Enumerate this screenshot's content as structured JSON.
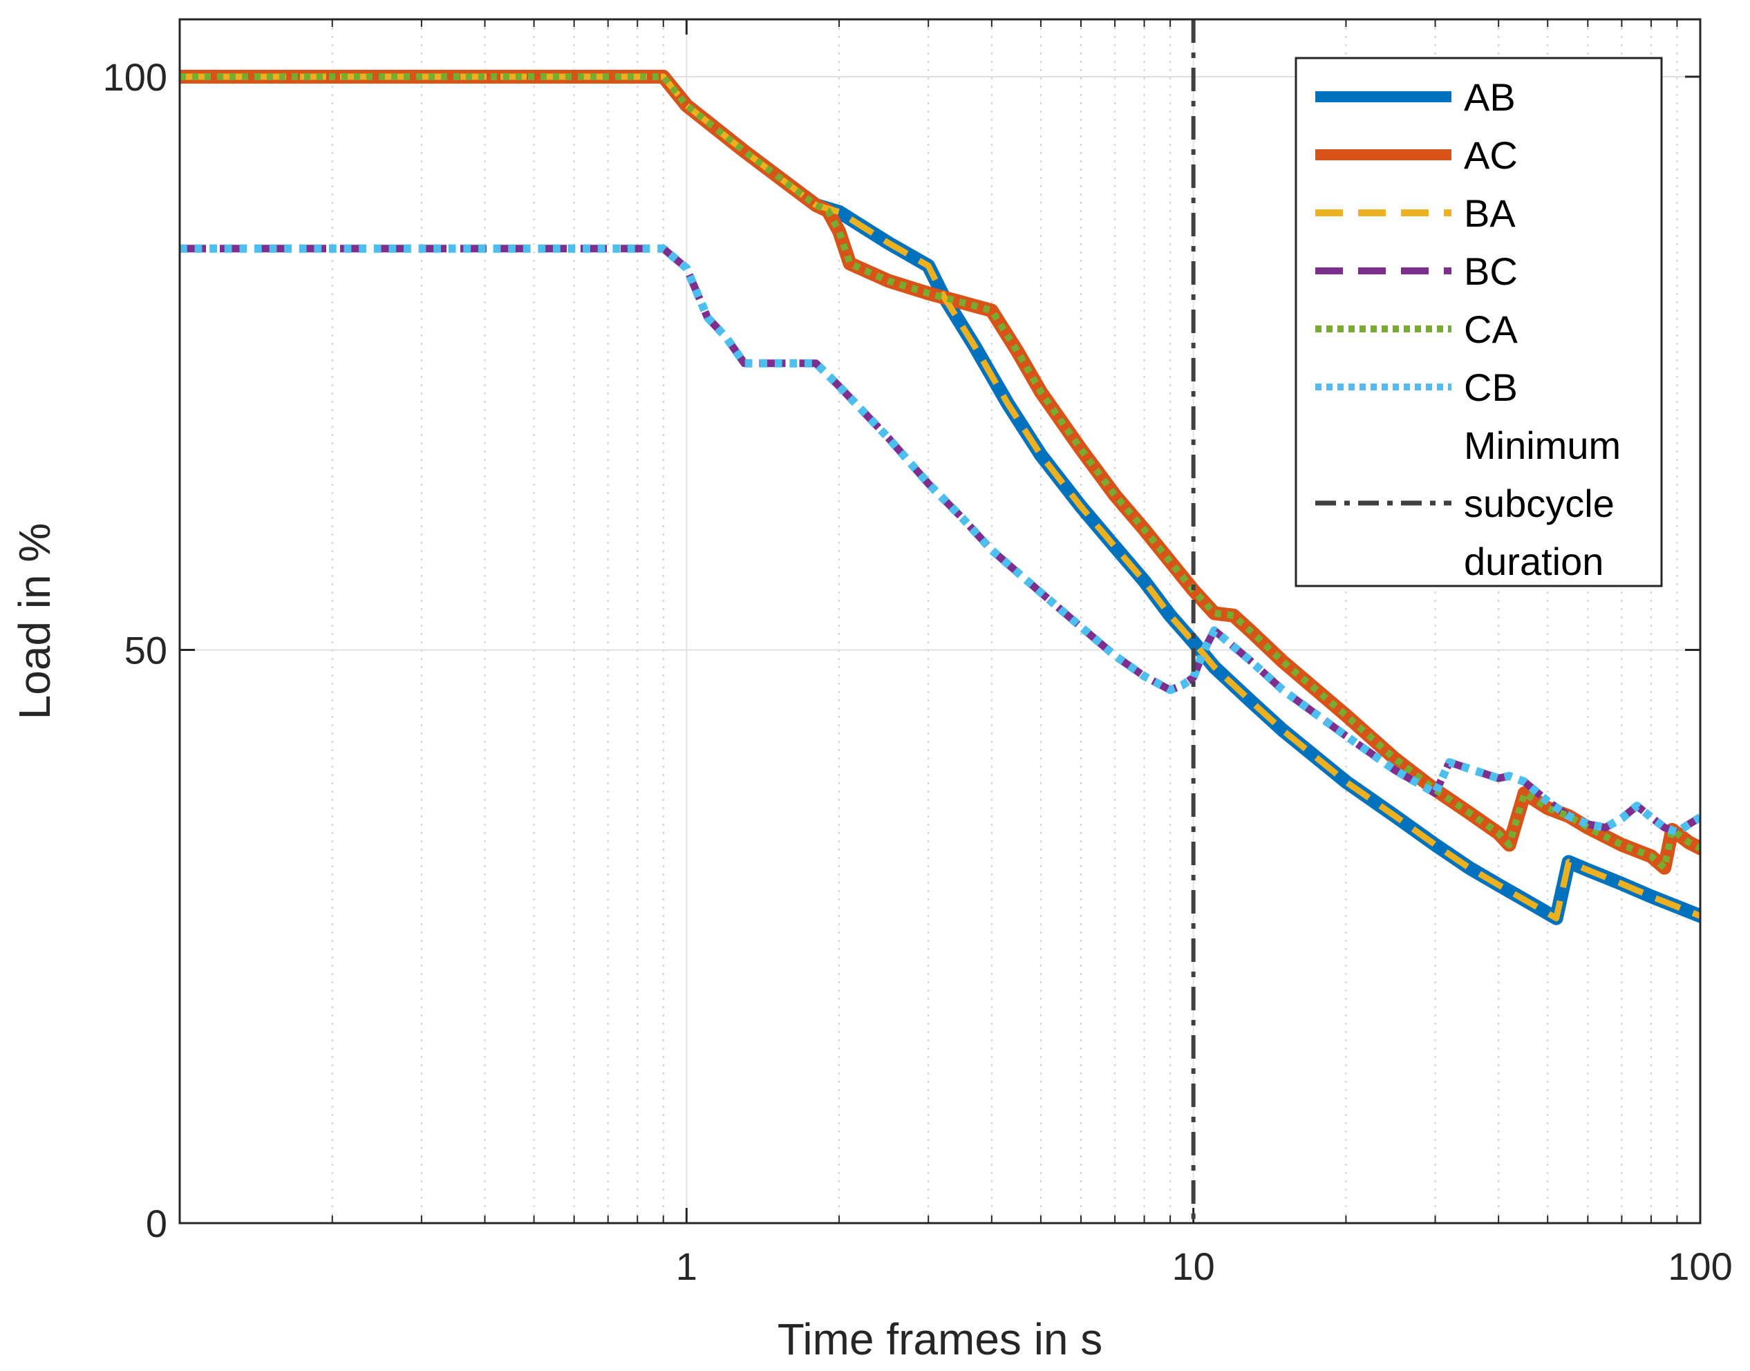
{
  "chart_data": {
    "type": "line",
    "xscale": "log",
    "xlabel": "Time frames in s",
    "ylabel": "Load in %",
    "xlim": [
      0.1,
      100
    ],
    "ylim": [
      0,
      105
    ],
    "xticks": [
      1,
      10,
      100
    ],
    "xtick_labels": [
      "1",
      "10",
      "100"
    ],
    "yticks": [
      0,
      50,
      100
    ],
    "ytick_labels": [
      "0",
      "50",
      "100"
    ],
    "grid": true,
    "legend_position": "top-right",
    "series": [
      {
        "name": "AB",
        "color": "#0072BD",
        "style": "solid",
        "width": 20,
        "points": [
          [
            0.1,
            100
          ],
          [
            0.9,
            100
          ],
          [
            1.0,
            97.5
          ],
          [
            1.3,
            93.5
          ],
          [
            1.6,
            90.5
          ],
          [
            1.8,
            88.8
          ],
          [
            2.0,
            88.2
          ],
          [
            2.5,
            85.5
          ],
          [
            3.0,
            83.5
          ],
          [
            3.2,
            81
          ],
          [
            3.7,
            76.5
          ],
          [
            4.3,
            71.5
          ],
          [
            5,
            67
          ],
          [
            6,
            62.5
          ],
          [
            7,
            59
          ],
          [
            8,
            56
          ],
          [
            9,
            53
          ],
          [
            10,
            50.7
          ],
          [
            11,
            48.5
          ],
          [
            13,
            45.5
          ],
          [
            15,
            43
          ],
          [
            20,
            38.5
          ],
          [
            25,
            35.5
          ],
          [
            30,
            33
          ],
          [
            35,
            31
          ],
          [
            40,
            29.5
          ],
          [
            45,
            28.2
          ],
          [
            52,
            26.6
          ],
          [
            55,
            31.5
          ],
          [
            60,
            30.8
          ],
          [
            70,
            29.6
          ],
          [
            80,
            28.5
          ],
          [
            90,
            27.6
          ],
          [
            100,
            26.8
          ]
        ]
      },
      {
        "name": "AC",
        "color": "#D95319",
        "style": "solid",
        "width": 20,
        "points": [
          [
            0.1,
            100
          ],
          [
            0.9,
            100
          ],
          [
            1.0,
            97.5
          ],
          [
            1.3,
            93.5
          ],
          [
            1.6,
            90.5
          ],
          [
            1.8,
            88.8
          ],
          [
            1.9,
            88.3
          ],
          [
            2.0,
            86.5
          ],
          [
            2.1,
            83.7
          ],
          [
            2.5,
            82.2
          ],
          [
            3.0,
            81.1
          ],
          [
            3.5,
            80.3
          ],
          [
            4.0,
            79.6
          ],
          [
            4.5,
            76
          ],
          [
            5,
            72.5
          ],
          [
            6,
            67.5
          ],
          [
            7,
            63.5
          ],
          [
            8,
            60.5
          ],
          [
            9,
            57.7
          ],
          [
            10,
            55.2
          ],
          [
            11,
            53.2
          ],
          [
            12,
            53
          ],
          [
            13,
            51.6
          ],
          [
            15,
            49
          ],
          [
            20,
            44.3
          ],
          [
            25,
            40.5
          ],
          [
            30,
            37.8
          ],
          [
            35,
            35.8
          ],
          [
            40,
            34
          ],
          [
            42,
            33
          ],
          [
            45,
            37.5
          ],
          [
            50,
            36.2
          ],
          [
            55,
            35.5
          ],
          [
            60,
            34.5
          ],
          [
            70,
            33
          ],
          [
            80,
            32
          ],
          [
            85,
            31
          ],
          [
            88,
            34.3
          ],
          [
            90,
            34
          ],
          [
            95,
            33.2
          ],
          [
            100,
            32.7
          ]
        ]
      },
      {
        "name": "BA",
        "color": "#EDB120",
        "style": "dash",
        "width": 9,
        "points": [
          [
            0.1,
            100
          ],
          [
            0.9,
            100
          ],
          [
            1.0,
            97.5
          ],
          [
            1.3,
            93.5
          ],
          [
            1.6,
            90.5
          ],
          [
            1.8,
            88.8
          ],
          [
            2.0,
            88.2
          ],
          [
            2.5,
            85.5
          ],
          [
            3.0,
            83.5
          ],
          [
            3.2,
            81
          ],
          [
            3.7,
            76.5
          ],
          [
            4.3,
            71.5
          ],
          [
            5,
            67
          ],
          [
            6,
            62.5
          ],
          [
            7,
            59
          ],
          [
            8,
            56
          ],
          [
            9,
            53
          ],
          [
            10,
            50.7
          ],
          [
            11,
            48.5
          ],
          [
            13,
            45.5
          ],
          [
            15,
            43
          ],
          [
            20,
            38.5
          ],
          [
            25,
            35.5
          ],
          [
            30,
            33
          ],
          [
            35,
            31
          ],
          [
            40,
            29.5
          ],
          [
            45,
            28.2
          ],
          [
            52,
            26.6
          ],
          [
            55,
            31.5
          ],
          [
            60,
            30.8
          ],
          [
            70,
            29.6
          ],
          [
            80,
            28.5
          ],
          [
            90,
            27.6
          ],
          [
            100,
            26.8
          ]
        ]
      },
      {
        "name": "BC",
        "color": "#7E2F8E",
        "style": "dash",
        "width": 11,
        "points": [
          [
            0.1,
            85
          ],
          [
            0.9,
            85
          ],
          [
            1.0,
            83.3
          ],
          [
            1.1,
            79
          ],
          [
            1.2,
            77.2
          ],
          [
            1.3,
            75
          ],
          [
            1.5,
            75
          ],
          [
            1.8,
            75
          ],
          [
            2.0,
            73
          ],
          [
            2.5,
            68.5
          ],
          [
            3,
            64.5
          ],
          [
            3.5,
            61.5
          ],
          [
            4,
            58.7
          ],
          [
            5,
            55
          ],
          [
            6,
            52
          ],
          [
            7,
            49.5
          ],
          [
            8,
            47.7
          ],
          [
            9,
            46.5
          ],
          [
            9.5,
            46.9
          ],
          [
            10,
            47.6
          ],
          [
            10.5,
            50
          ],
          [
            11,
            51.7
          ],
          [
            13,
            49
          ],
          [
            15,
            46.5
          ],
          [
            20,
            42.5
          ],
          [
            25,
            39.5
          ],
          [
            30,
            37.5
          ],
          [
            32,
            40.2
          ],
          [
            40,
            38.8
          ],
          [
            42,
            39
          ],
          [
            45,
            38.5
          ],
          [
            50,
            36.8
          ],
          [
            55,
            35.5
          ],
          [
            60,
            34.8
          ],
          [
            65,
            34.5
          ],
          [
            70,
            35.3
          ],
          [
            75,
            36.4
          ],
          [
            80,
            35.4
          ],
          [
            85,
            34.5
          ],
          [
            90,
            34.1
          ],
          [
            95,
            34.8
          ],
          [
            100,
            35.4
          ]
        ]
      },
      {
        "name": "CA",
        "color": "#77AC30",
        "style": "dot",
        "width": 10,
        "points": [
          [
            0.1,
            100
          ],
          [
            0.9,
            100
          ],
          [
            1.0,
            97.5
          ],
          [
            1.3,
            93.5
          ],
          [
            1.6,
            90.5
          ],
          [
            1.8,
            88.8
          ],
          [
            1.9,
            88.3
          ],
          [
            2.0,
            86.5
          ],
          [
            2.1,
            83.7
          ],
          [
            2.5,
            82.2
          ],
          [
            3.0,
            81.1
          ],
          [
            3.5,
            80.3
          ],
          [
            4.0,
            79.6
          ],
          [
            4.5,
            76
          ],
          [
            5,
            72.5
          ],
          [
            6,
            67.5
          ],
          [
            7,
            63.5
          ],
          [
            8,
            60.5
          ],
          [
            9,
            57.7
          ],
          [
            10,
            55.2
          ],
          [
            11,
            53.2
          ],
          [
            12,
            53
          ],
          [
            13,
            51.6
          ],
          [
            15,
            49
          ],
          [
            20,
            44.3
          ],
          [
            25,
            40.5
          ],
          [
            30,
            37.8
          ],
          [
            35,
            35.8
          ],
          [
            40,
            34
          ],
          [
            42,
            33
          ],
          [
            45,
            37.5
          ],
          [
            50,
            36.2
          ],
          [
            55,
            35.5
          ],
          [
            60,
            34.5
          ],
          [
            70,
            33
          ],
          [
            80,
            32
          ],
          [
            85,
            31
          ],
          [
            88,
            34.3
          ],
          [
            90,
            34
          ],
          [
            95,
            33.2
          ],
          [
            100,
            32.7
          ]
        ]
      },
      {
        "name": "CB",
        "color": "#4DBEEE",
        "style": "dot",
        "width": 12,
        "points": [
          [
            0.1,
            85
          ],
          [
            0.9,
            85
          ],
          [
            1.0,
            83.3
          ],
          [
            1.1,
            79
          ],
          [
            1.2,
            77.2
          ],
          [
            1.3,
            75
          ],
          [
            1.5,
            75
          ],
          [
            1.8,
            75
          ],
          [
            2.0,
            73
          ],
          [
            2.5,
            68.5
          ],
          [
            3,
            64.5
          ],
          [
            3.5,
            61.5
          ],
          [
            4,
            58.7
          ],
          [
            5,
            55
          ],
          [
            6,
            52
          ],
          [
            7,
            49.5
          ],
          [
            8,
            47.7
          ],
          [
            9,
            46.5
          ],
          [
            9.5,
            46.9
          ],
          [
            10,
            47.6
          ],
          [
            10.5,
            50
          ],
          [
            11,
            51.7
          ],
          [
            13,
            49
          ],
          [
            15,
            46.5
          ],
          [
            20,
            42.5
          ],
          [
            25,
            39.5
          ],
          [
            30,
            37.5
          ],
          [
            32,
            40.2
          ],
          [
            40,
            38.8
          ],
          [
            42,
            39
          ],
          [
            45,
            38.5
          ],
          [
            50,
            36.8
          ],
          [
            55,
            35.5
          ],
          [
            60,
            34.8
          ],
          [
            65,
            34.5
          ],
          [
            70,
            35.3
          ],
          [
            75,
            36.4
          ],
          [
            80,
            35.4
          ],
          [
            85,
            34.5
          ],
          [
            90,
            34.1
          ],
          [
            95,
            34.8
          ],
          [
            100,
            35.4
          ]
        ]
      }
    ],
    "reference_lines": [
      {
        "name": "Minimum subcycle duration",
        "legend_lines": [
          "Minimum",
          "subcycle",
          "duration"
        ],
        "x": 10,
        "orientation": "vertical",
        "color": "#404040",
        "style": "dashdot"
      }
    ]
  }
}
